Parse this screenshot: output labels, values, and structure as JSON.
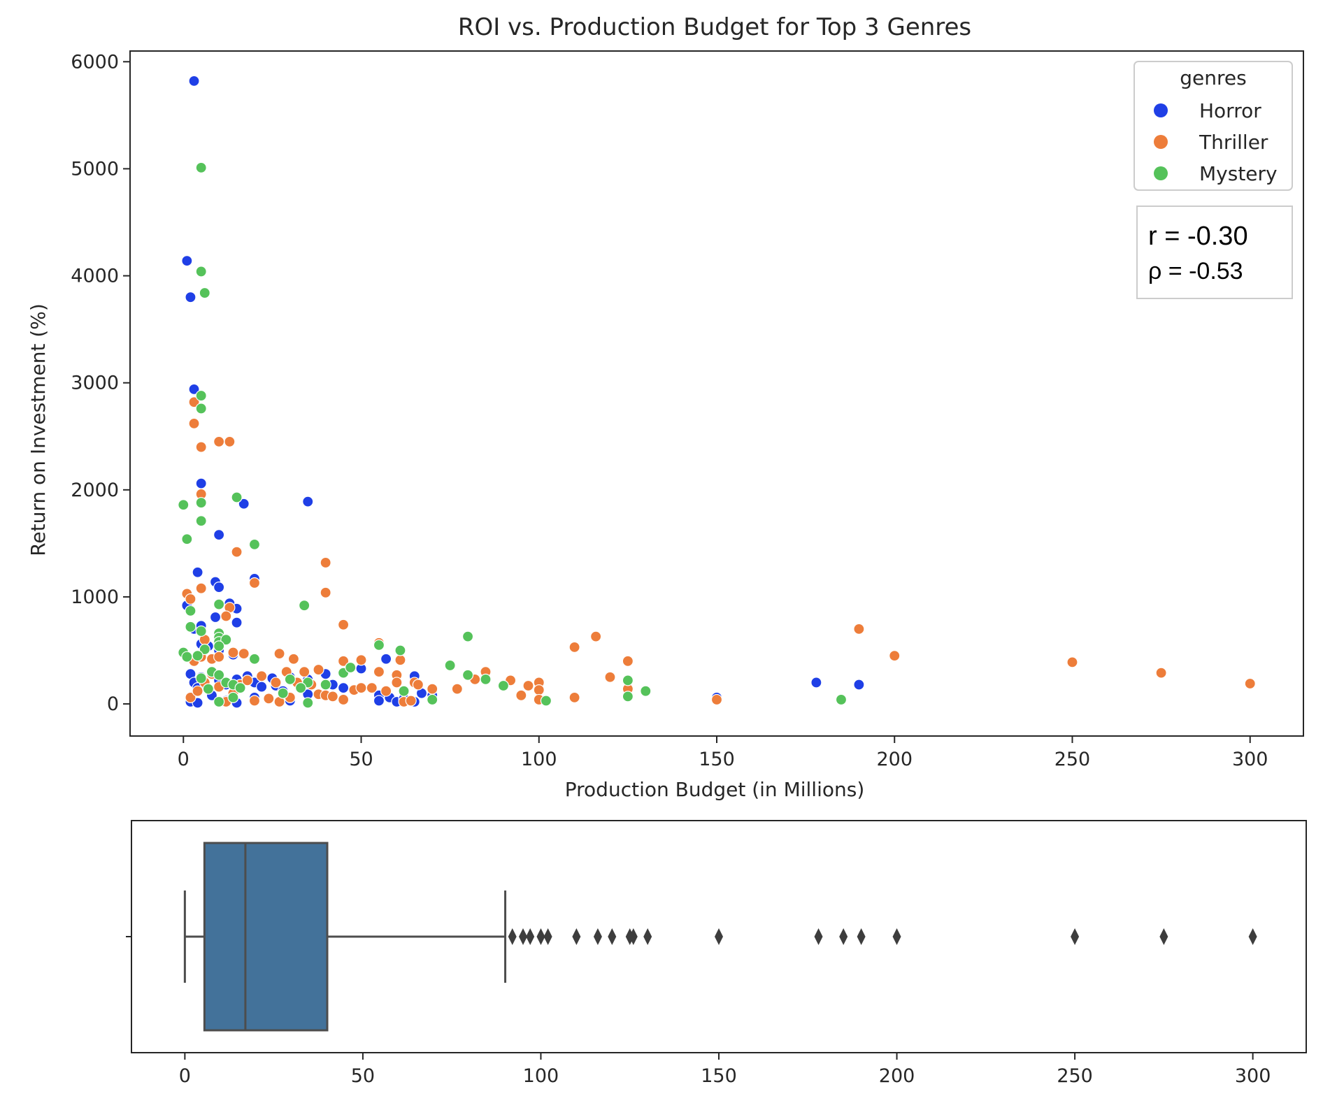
{
  "colors": {
    "Horror": "#1f3fe6",
    "Thriller": "#ed7d3a",
    "Mystery": "#55c25a",
    "box_fill": "#43729a",
    "box_line": "#4d4d4d"
  },
  "chart_data": [
    {
      "type": "scatter",
      "title": "ROI vs. Production Budget for Top 3 Genres",
      "xlabel": "Production Budget (in Millions)",
      "ylabel": "Return on Investment (%)",
      "xlim": [
        -15,
        315
      ],
      "ylim": [
        -300,
        6100
      ],
      "xticks": [
        0,
        50,
        100,
        150,
        200,
        250,
        300
      ],
      "yticks": [
        0,
        1000,
        2000,
        3000,
        4000,
        5000,
        6000
      ],
      "grid": false,
      "legend": {
        "title": "genres",
        "placement": "top-right",
        "entries": [
          "Horror",
          "Thriller",
          "Mystery"
        ]
      },
      "annotation": {
        "r_text": "r = -0.30",
        "rho_text": "ρ = -0.53"
      },
      "series": [
        {
          "name": "Horror",
          "points": [
            [
              3,
              5820
            ],
            [
              1,
              4140
            ],
            [
              2,
              3800
            ],
            [
              3,
              2940
            ],
            [
              5,
              2060
            ],
            [
              17,
              1870
            ],
            [
              35,
              1890
            ],
            [
              10,
              1580
            ],
            [
              4,
              1230
            ],
            [
              9,
              1140
            ],
            [
              10,
              1090
            ],
            [
              20,
              1170
            ],
            [
              13,
              940
            ],
            [
              15,
              890
            ],
            [
              15,
              760
            ],
            [
              9,
              810
            ],
            [
              1,
              920
            ],
            [
              3,
              700
            ],
            [
              5,
              730
            ],
            [
              5,
              560
            ],
            [
              7,
              540
            ],
            [
              10,
              500
            ],
            [
              14,
              460
            ],
            [
              2,
              280
            ],
            [
              3,
              200
            ],
            [
              4,
              150
            ],
            [
              5,
              250
            ],
            [
              8,
              300
            ],
            [
              10,
              220
            ],
            [
              12,
              180
            ],
            [
              15,
              230
            ],
            [
              18,
              260
            ],
            [
              20,
              200
            ],
            [
              22,
              160
            ],
            [
              25,
              240
            ],
            [
              26,
              170
            ],
            [
              28,
              120
            ],
            [
              30,
              250
            ],
            [
              35,
              230
            ],
            [
              40,
              280
            ],
            [
              42,
              180
            ],
            [
              45,
              150
            ],
            [
              50,
              330
            ],
            [
              55,
              80
            ],
            [
              57,
              420
            ],
            [
              58,
              60
            ],
            [
              60,
              20
            ],
            [
              62,
              50
            ],
            [
              65,
              260
            ],
            [
              67,
              100
            ],
            [
              70,
              80
            ],
            [
              2,
              20
            ],
            [
              4,
              10
            ],
            [
              12,
              30
            ],
            [
              15,
              10
            ],
            [
              35,
              90
            ],
            [
              150,
              60
            ],
            [
              178,
              200
            ],
            [
              190,
              180
            ],
            [
              55,
              30
            ],
            [
              65,
              20
            ],
            [
              30,
              30
            ],
            [
              8,
              80
            ],
            [
              20,
              60
            ]
          ]
        },
        {
          "name": "Thriller",
          "points": [
            [
              3,
              2820
            ],
            [
              3,
              2620
            ],
            [
              5,
              2400
            ],
            [
              10,
              2450
            ],
            [
              13,
              2450
            ],
            [
              5,
              1960
            ],
            [
              15,
              1420
            ],
            [
              20,
              1130
            ],
            [
              5,
              1080
            ],
            [
              1,
              1030
            ],
            [
              2,
              980
            ],
            [
              13,
              900
            ],
            [
              12,
              820
            ],
            [
              40,
              1320
            ],
            [
              40,
              1040
            ],
            [
              45,
              740
            ],
            [
              6,
              600
            ],
            [
              8,
              420
            ],
            [
              10,
              440
            ],
            [
              14,
              480
            ],
            [
              17,
              470
            ],
            [
              27,
              470
            ],
            [
              31,
              420
            ],
            [
              38,
              320
            ],
            [
              45,
              400
            ],
            [
              50,
              410
            ],
            [
              55,
              570
            ],
            [
              61,
              410
            ],
            [
              60,
              270
            ],
            [
              55,
              300
            ],
            [
              57,
              120
            ],
            [
              65,
              200
            ],
            [
              70,
              140
            ],
            [
              77,
              140
            ],
            [
              82,
              230
            ],
            [
              85,
              300
            ],
            [
              92,
              220
            ],
            [
              95,
              80
            ],
            [
              97,
              170
            ],
            [
              100,
              200
            ],
            [
              100,
              130
            ],
            [
              110,
              530
            ],
            [
              110,
              60
            ],
            [
              116,
              630
            ],
            [
              120,
              250
            ],
            [
              125,
              400
            ],
            [
              125,
              140
            ],
            [
              150,
              40
            ],
            [
              190,
              700
            ],
            [
              200,
              450
            ],
            [
              250,
              390
            ],
            [
              275,
              290
            ],
            [
              300,
              190
            ],
            [
              2,
              60
            ],
            [
              4,
              120
            ],
            [
              6,
              200
            ],
            [
              8,
              280
            ],
            [
              10,
              160
            ],
            [
              12,
              20
            ],
            [
              14,
              100
            ],
            [
              16,
              180
            ],
            [
              18,
              220
            ],
            [
              20,
              30
            ],
            [
              22,
              260
            ],
            [
              24,
              50
            ],
            [
              26,
              200
            ],
            [
              27,
              20
            ],
            [
              29,
              300
            ],
            [
              30,
              60
            ],
            [
              32,
              200
            ],
            [
              34,
              300
            ],
            [
              36,
              180
            ],
            [
              38,
              90
            ],
            [
              40,
              80
            ],
            [
              42,
              70
            ],
            [
              45,
              40
            ],
            [
              48,
              130
            ],
            [
              50,
              150
            ],
            [
              53,
              150
            ],
            [
              60,
              200
            ],
            [
              62,
              20
            ],
            [
              64,
              30
            ],
            [
              66,
              180
            ],
            [
              100,
              40
            ],
            [
              3,
              400
            ],
            [
              5,
              440
            ]
          ]
        },
        {
          "name": "Mystery",
          "points": [
            [
              5,
              5010
            ],
            [
              5,
              4040
            ],
            [
              6,
              3840
            ],
            [
              5,
              2880
            ],
            [
              5,
              2760
            ],
            [
              15,
              1930
            ],
            [
              0,
              1860
            ],
            [
              5,
              1880
            ],
            [
              5,
              1710
            ],
            [
              20,
              1490
            ],
            [
              1,
              1540
            ],
            [
              10,
              930
            ],
            [
              34,
              920
            ],
            [
              2,
              870
            ],
            [
              2,
              720
            ],
            [
              5,
              680
            ],
            [
              10,
              660
            ],
            [
              10,
              620
            ],
            [
              10,
              580
            ],
            [
              12,
              600
            ],
            [
              10,
              540
            ],
            [
              6,
              510
            ],
            [
              0,
              480
            ],
            [
              1,
              440
            ],
            [
              4,
              450
            ],
            [
              8,
              300
            ],
            [
              10,
              270
            ],
            [
              12,
              200
            ],
            [
              14,
              180
            ],
            [
              16,
              150
            ],
            [
              20,
              420
            ],
            [
              30,
              230
            ],
            [
              35,
              200
            ],
            [
              40,
              180
            ],
            [
              45,
              290
            ],
            [
              47,
              340
            ],
            [
              55,
              550
            ],
            [
              61,
              500
            ],
            [
              75,
              360
            ],
            [
              80,
              630
            ],
            [
              80,
              270
            ],
            [
              85,
              230
            ],
            [
              90,
              170
            ],
            [
              102,
              30
            ],
            [
              125,
              220
            ],
            [
              125,
              70
            ],
            [
              130,
              120
            ],
            [
              185,
              40
            ],
            [
              10,
              20
            ],
            [
              14,
              60
            ],
            [
              35,
              10
            ],
            [
              62,
              120
            ],
            [
              70,
              40
            ],
            [
              7,
              140
            ],
            [
              5,
              240
            ],
            [
              33,
              150
            ],
            [
              28,
              100
            ]
          ]
        }
      ]
    },
    {
      "type": "box",
      "orientation": "horizontal",
      "xlim": [
        -15,
        315
      ],
      "xticks": [
        0,
        50,
        100,
        150,
        200,
        250,
        300
      ],
      "whisker_low": 0,
      "q1": 5.5,
      "median": 17,
      "q3": 40,
      "whisker_high": 90,
      "outliers": [
        92,
        95,
        97,
        100,
        102,
        110,
        116,
        120,
        125,
        126,
        130,
        150,
        178,
        185,
        190,
        200,
        250,
        275,
        300
      ]
    }
  ]
}
